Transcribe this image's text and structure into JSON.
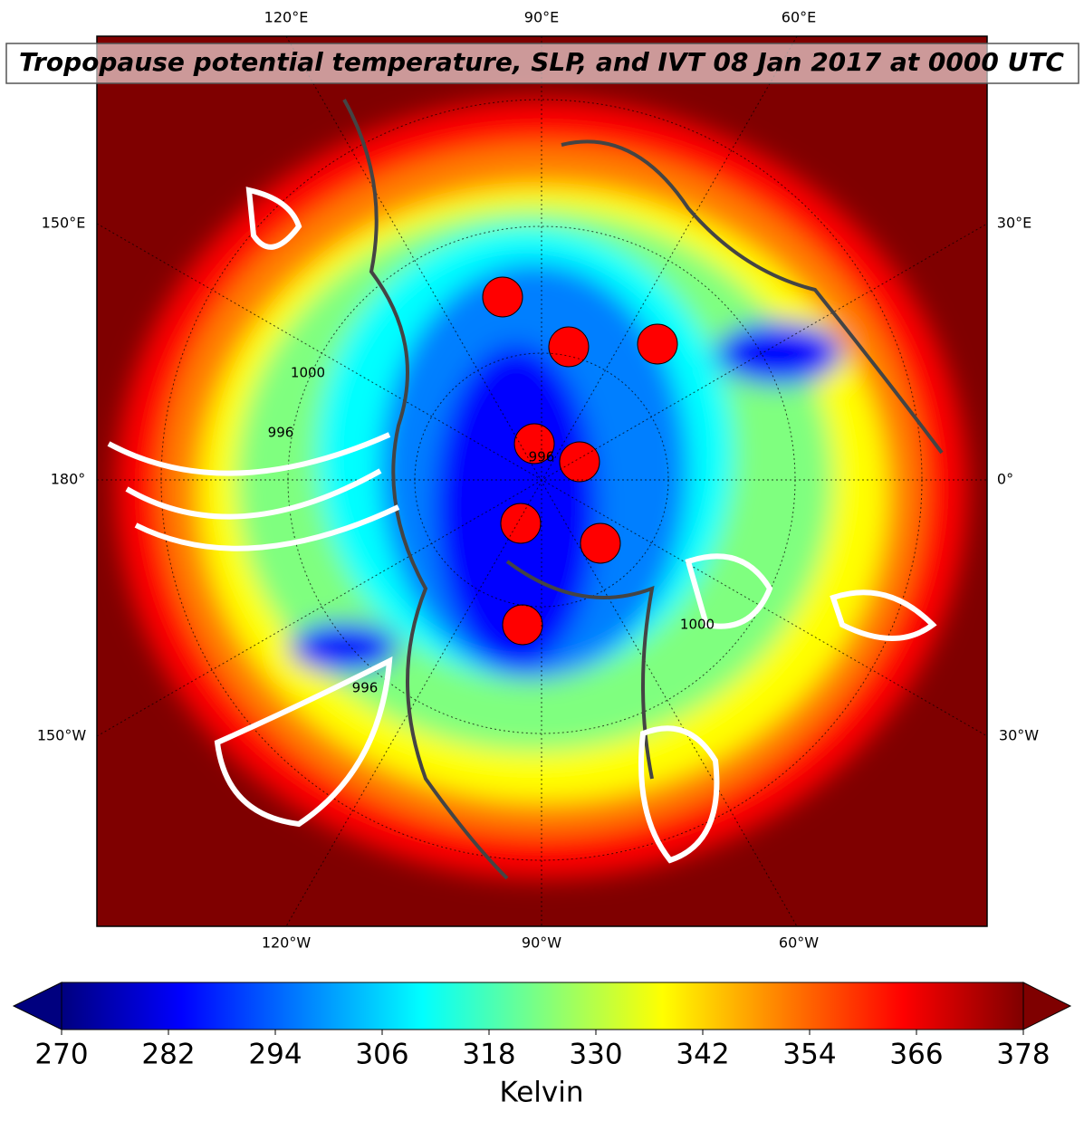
{
  "title": "Tropopause potential temperature, SLP, and IVT 08 Jan 2017 at 0000 UTC",
  "lon_labels": {
    "top": [
      "120°E",
      "90°E",
      "60°E"
    ],
    "left": [
      "150°E",
      "180°",
      "150°W"
    ],
    "right": [
      "30°E",
      "0°",
      "30°W"
    ],
    "bottom": [
      "120°W",
      "90°W",
      "60°W"
    ]
  },
  "contour_labels": [
    "1000",
    "996",
    "996",
    "1000",
    "996"
  ],
  "colorbar": {
    "lim": [
      270,
      378
    ],
    "ticks": [
      270,
      282,
      294,
      306,
      318,
      330,
      342,
      354,
      366,
      378
    ],
    "label": "Kelvin",
    "extend": "both",
    "colors": [
      "#00007f",
      "#0000ff",
      "#007fff",
      "#00ffff",
      "#7fff7f",
      "#ffff00",
      "#ff7f00",
      "#ff0000",
      "#7f0000"
    ]
  }
}
